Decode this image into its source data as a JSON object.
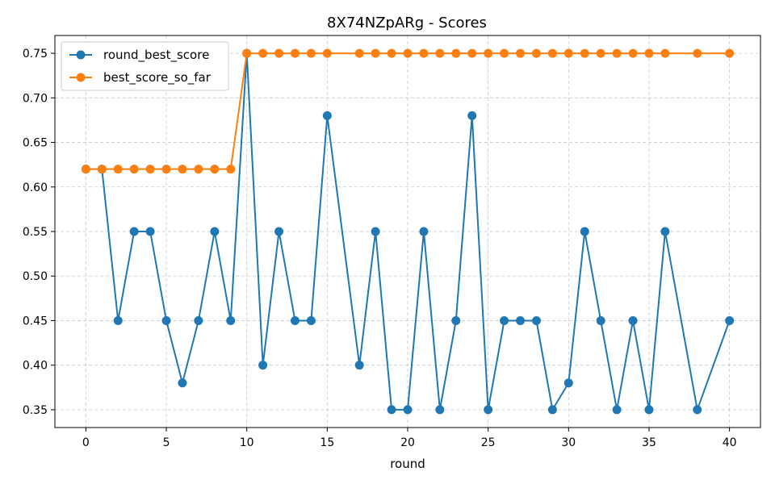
{
  "chart_data": {
    "type": "line",
    "title": "8X74NZpARg - Scores",
    "xlabel": "round",
    "ylabel": "",
    "xlim": [
      -1.925,
      41.925
    ],
    "ylim": [
      0.33,
      0.77
    ],
    "xticks": [
      0,
      5,
      10,
      15,
      20,
      25,
      30,
      35,
      40
    ],
    "yticks": [
      0.35,
      0.4,
      0.45,
      0.5,
      0.55,
      0.6,
      0.65,
      0.7,
      0.75
    ],
    "grid": true,
    "legend_position": "top-left",
    "x": [
      0,
      1,
      2,
      3,
      4,
      5,
      6,
      7,
      8,
      9,
      10,
      11,
      12,
      13,
      14,
      15,
      17,
      18,
      19,
      20,
      21,
      22,
      23,
      24,
      25,
      26,
      27,
      28,
      29,
      30,
      31,
      32,
      33,
      34,
      35,
      36,
      38,
      40
    ],
    "series": [
      {
        "name": "round_best_score",
        "color": "#1f77b4",
        "marker": "circle",
        "values": [
          0.62,
          0.62,
          0.45,
          0.55,
          0.55,
          0.45,
          0.38,
          0.45,
          0.55,
          0.45,
          0.75,
          0.4,
          0.55,
          0.45,
          0.45,
          0.68,
          0.4,
          0.55,
          0.35,
          0.35,
          0.55,
          0.35,
          0.45,
          0.68,
          0.35,
          0.45,
          0.45,
          0.45,
          0.35,
          0.38,
          0.55,
          0.45,
          0.35,
          0.45,
          0.35,
          0.55,
          0.35,
          0.45
        ]
      },
      {
        "name": "best_score_so_far",
        "color": "#ff7f0e",
        "marker": "circle",
        "values": [
          0.62,
          0.62,
          0.62,
          0.62,
          0.62,
          0.62,
          0.62,
          0.62,
          0.62,
          0.62,
          0.75,
          0.75,
          0.75,
          0.75,
          0.75,
          0.75,
          0.75,
          0.75,
          0.75,
          0.75,
          0.75,
          0.75,
          0.75,
          0.75,
          0.75,
          0.75,
          0.75,
          0.75,
          0.75,
          0.75,
          0.75,
          0.75,
          0.75,
          0.75,
          0.75,
          0.75,
          0.75,
          0.75
        ]
      }
    ]
  }
}
